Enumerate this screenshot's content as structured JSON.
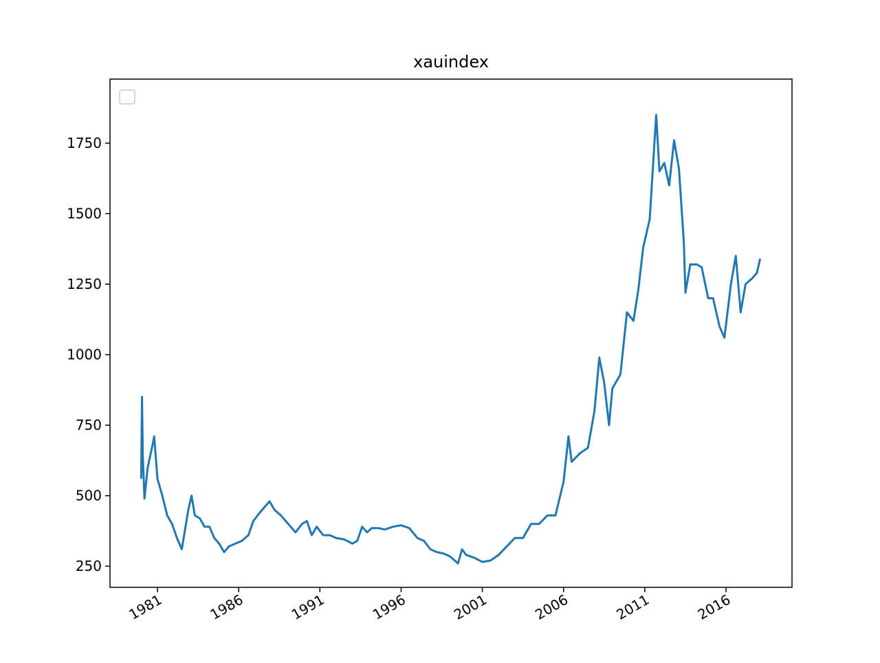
{
  "chart_data": {
    "type": "line",
    "title": "xauindex",
    "x": [
      1980.0,
      1980.05,
      1980.1,
      1980.2,
      1980.4,
      1980.7,
      1980.8,
      1981.0,
      1981.3,
      1981.6,
      1981.9,
      1982.2,
      1982.5,
      1982.7,
      1982.9,
      1983.1,
      1983.3,
      1983.6,
      1983.9,
      1984.2,
      1984.5,
      1984.8,
      1985.1,
      1985.4,
      1985.8,
      1986.2,
      1986.6,
      1986.9,
      1987.3,
      1987.6,
      1987.9,
      1988.2,
      1988.6,
      1988.9,
      1989.2,
      1989.5,
      1989.9,
      1990.2,
      1990.5,
      1990.8,
      1991.2,
      1991.6,
      1992.0,
      1992.5,
      1993.0,
      1993.3,
      1993.6,
      1993.9,
      1994.2,
      1994.6,
      1995.0,
      1995.5,
      1996.0,
      1996.5,
      1997.0,
      1997.4,
      1997.8,
      1998.2,
      1998.6,
      1999.0,
      1999.5,
      1999.75,
      2000.0,
      2000.5,
      2001.0,
      2001.5,
      2002.0,
      2002.5,
      2003.0,
      2003.5,
      2004.0,
      2004.5,
      2005.0,
      2005.5,
      2006.0,
      2006.3,
      2006.5,
      2007.0,
      2007.5,
      2007.9,
      2008.2,
      2008.5,
      2008.8,
      2009.0,
      2009.5,
      2009.9,
      2010.3,
      2010.6,
      2010.9,
      2011.3,
      2011.7,
      2011.9,
      2012.2,
      2012.5,
      2012.8,
      2013.1,
      2013.4,
      2013.5,
      2013.8,
      2014.2,
      2014.5,
      2014.9,
      2015.2,
      2015.6,
      2015.9,
      2016.3,
      2016.6,
      2016.9,
      2017.2,
      2017.6,
      2017.9,
      2018.1
    ],
    "values": [
      560,
      850,
      640,
      490,
      600,
      680,
      710,
      560,
      500,
      430,
      400,
      350,
      310,
      380,
      450,
      500,
      430,
      420,
      390,
      390,
      350,
      330,
      300,
      320,
      330,
      340,
      360,
      410,
      440,
      460,
      480,
      450,
      430,
      410,
      390,
      370,
      400,
      410,
      360,
      390,
      360,
      360,
      350,
      345,
      330,
      340,
      390,
      370,
      385,
      385,
      380,
      390,
      395,
      385,
      350,
      340,
      310,
      300,
      295,
      285,
      260,
      310,
      290,
      280,
      265,
      270,
      290,
      320,
      350,
      350,
      400,
      400,
      430,
      430,
      550,
      710,
      620,
      650,
      670,
      800,
      990,
      900,
      750,
      880,
      930,
      1150,
      1120,
      1230,
      1380,
      1480,
      1850,
      1650,
      1680,
      1600,
      1760,
      1660,
      1400,
      1220,
      1320,
      1320,
      1310,
      1200,
      1200,
      1100,
      1060,
      1250,
      1350,
      1150,
      1250,
      1270,
      1290,
      1340
    ],
    "color": "#1f77b4",
    "xlim": [
      1978.08,
      2020.06
    ],
    "xticks": [
      1981,
      1986,
      1991,
      1996,
      2001,
      2006,
      2011,
      2016
    ],
    "ylim": [
      175,
      1977
    ],
    "yticks": [
      250,
      500,
      750,
      1000,
      1250,
      1500,
      1750
    ],
    "legend": "upper left"
  }
}
